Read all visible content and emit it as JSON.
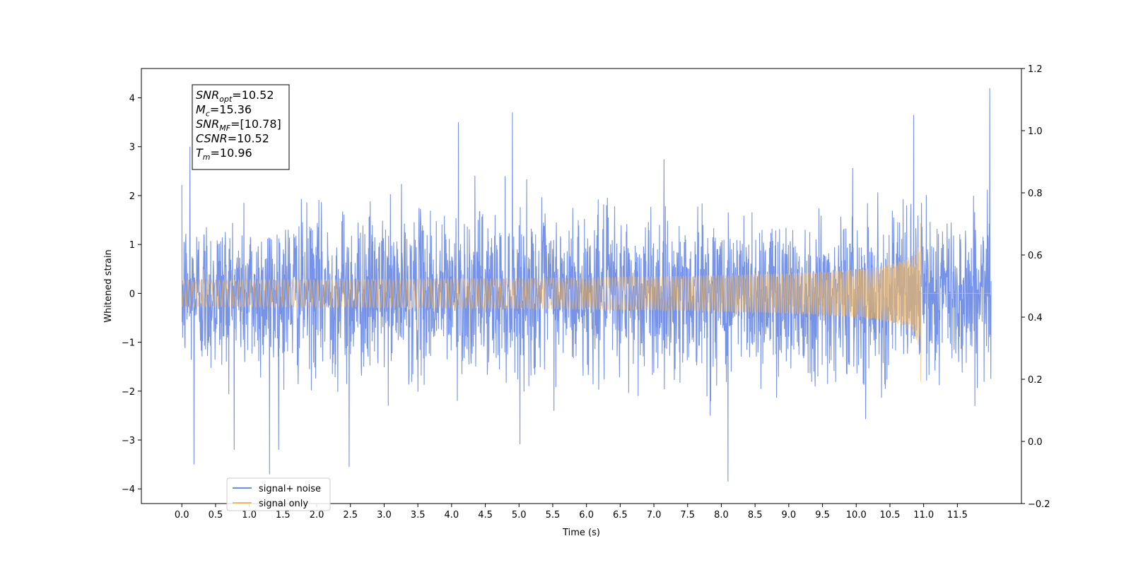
{
  "chart_data": {
    "type": "line",
    "xlabel": "Time (s)",
    "ylabel": "Whitened strain",
    "xlim": [
      -0.6,
      12.45
    ],
    "ylim": [
      -4.3,
      4.6
    ],
    "y2lim": [
      -0.2,
      1.2
    ],
    "x_ticks": [
      "0.0",
      "0.5",
      "1.0",
      "1.5",
      "2.0",
      "2.5",
      "3.0",
      "3.5",
      "4.0",
      "4.5",
      "5.0",
      "5.5",
      "6.0",
      "6.5",
      "7.0",
      "7.5",
      "8.0",
      "8.5",
      "9.0",
      "9.5",
      "10.0",
      "10.5",
      "11.0",
      "11.5"
    ],
    "y_ticks": [
      "4",
      "3",
      "2",
      "1",
      "0",
      "−1",
      "−2",
      "−3",
      "−4"
    ],
    "y2_ticks": [
      "1.2",
      "1.0",
      "0.8",
      "0.6",
      "0.4",
      "0.2",
      "0.0",
      "−0.2"
    ],
    "series": [
      {
        "name": "signal+ noise",
        "color": "#6f8de6",
        "description": "whitened noise plus injected chirp, roughly Gaussian with sigma ~0.75, peaks near ±3.7",
        "x_range": [
          0.0,
          12.0
        ],
        "max": 4.2,
        "min": -3.85,
        "notable_peaks": [
          {
            "x": 0.12,
            "y": 3.0
          },
          {
            "x": 4.1,
            "y": 3.5
          },
          {
            "x": 4.9,
            "y": 3.7
          },
          {
            "x": 10.85,
            "y": 3.65
          },
          {
            "x": 11.98,
            "y": 4.2
          },
          {
            "x": 1.3,
            "y": -3.7
          },
          {
            "x": 8.1,
            "y": -3.85
          },
          {
            "x": 0.18,
            "y": -3.5
          },
          {
            "x": 2.48,
            "y": -3.55
          }
        ]
      },
      {
        "name": "signal only",
        "color": "#f5b85a",
        "description": "chirp waveform growing in amplitude until merger at T=10.96 s, then zero",
        "x_range": [
          0.0,
          12.0
        ],
        "merger_time": 10.96,
        "peak_amplitude": 1.95
      }
    ],
    "annotation": {
      "lines": [
        {
          "sym": "SNR",
          "sub": "opt",
          "val": "=10.52"
        },
        {
          "sym": "M",
          "sub": "c",
          "val": "=15.36"
        },
        {
          "sym": "SNR",
          "sub": "MF",
          "val": "=[10.78]"
        },
        {
          "sym": "CSNR",
          "sub": "",
          "val": "=10.52"
        },
        {
          "sym": "T",
          "sub": "m",
          "val": "=10.96"
        }
      ]
    },
    "legend": {
      "position": "lower-left",
      "entries": [
        "signal+ noise",
        "signal only"
      ]
    },
    "grid": false
  }
}
